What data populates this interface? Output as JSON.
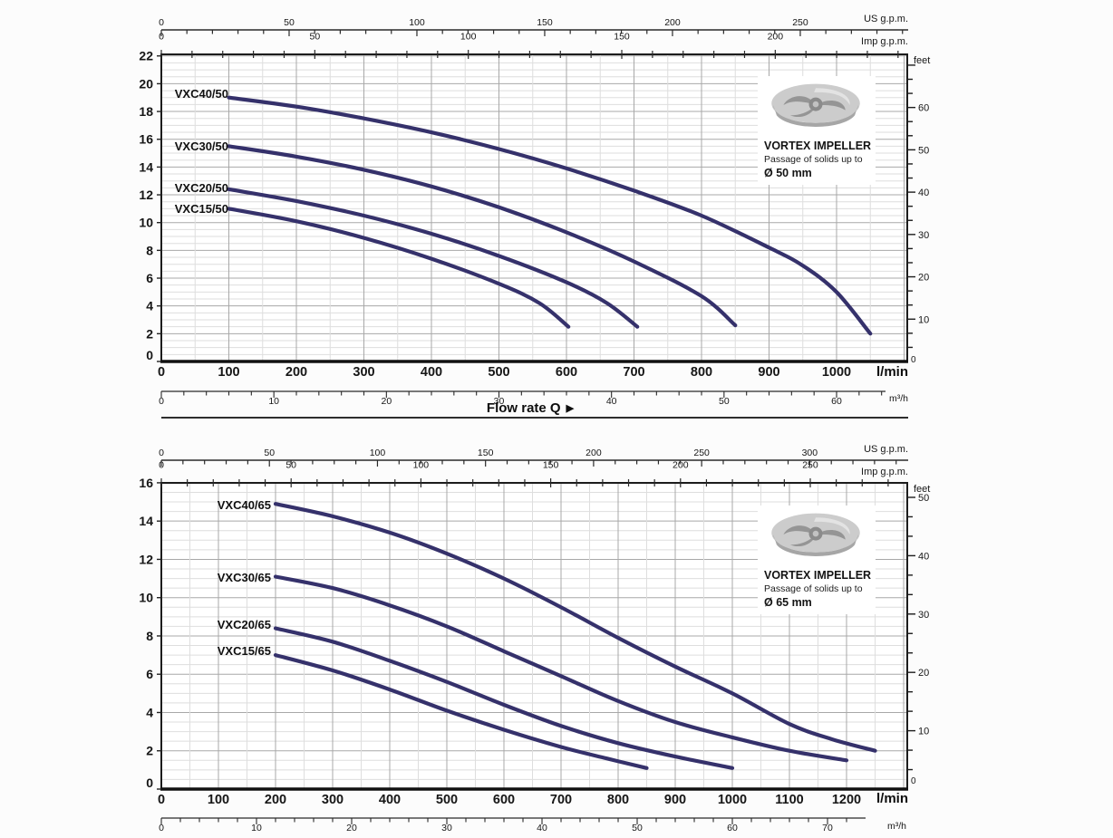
{
  "flow_rate": {
    "label": "Flow rate  Q",
    "arrow": "▶"
  },
  "colors": {
    "curve": "#35316b",
    "grid_minor": "#dedede",
    "grid_major": "#a8a8a8",
    "frame": "#1c1c1c",
    "background": "#ffffff"
  },
  "chart_data": [
    {
      "id": "vxc-50-series",
      "type": "line",
      "xlabel": "l/min",
      "x2label": "m³/h",
      "x3label": "US g.p.m.",
      "x4label": "Imp g.p.m.",
      "y2label": "feet",
      "y2zero": "0",
      "xlim": [
        0,
        1105
      ],
      "ylim": [
        0,
        22.1
      ],
      "x_ticks_lmin": [
        0,
        100,
        200,
        300,
        400,
        500,
        600,
        700,
        800,
        900,
        1000
      ],
      "x_ticks_m3h": [
        0,
        10,
        20,
        30,
        40,
        50,
        60
      ],
      "x_ticks_us_gpm": [
        0,
        50,
        100,
        150,
        200,
        250
      ],
      "x_ticks_imp_gpm": [
        0,
        50,
        100,
        150,
        200
      ],
      "y_ticks_m": [
        0,
        2,
        4,
        6,
        8,
        10,
        12,
        14,
        16,
        18,
        20,
        22
      ],
      "y_ticks_feet": [
        0,
        10,
        20,
        30,
        40,
        50,
        60
      ],
      "series": [
        {
          "name": "VXC40/50",
          "points": [
            [
              100,
              19.0
            ],
            [
              200,
              18.35
            ],
            [
              300,
              17.5
            ],
            [
              400,
              16.5
            ],
            [
              500,
              15.3
            ],
            [
              600,
              13.9
            ],
            [
              700,
              12.3
            ],
            [
              800,
              10.5
            ],
            [
              900,
              8.2
            ],
            [
              950,
              6.9
            ],
            [
              1000,
              5.0
            ],
            [
              1050,
              2.0
            ]
          ]
        },
        {
          "name": "VXC30/50",
          "points": [
            [
              100,
              15.5
            ],
            [
              200,
              14.75
            ],
            [
              300,
              13.8
            ],
            [
              400,
              12.6
            ],
            [
              500,
              11.1
            ],
            [
              600,
              9.3
            ],
            [
              700,
              7.2
            ],
            [
              800,
              4.7
            ],
            [
              850,
              2.6
            ]
          ]
        },
        {
          "name": "VXC20/50",
          "points": [
            [
              100,
              12.4
            ],
            [
              200,
              11.55
            ],
            [
              300,
              10.5
            ],
            [
              400,
              9.2
            ],
            [
              500,
              7.6
            ],
            [
              600,
              5.7
            ],
            [
              660,
              4.2
            ],
            [
              705,
              2.5
            ]
          ]
        },
        {
          "name": "VXC15/50",
          "points": [
            [
              100,
              11.0
            ],
            [
              200,
              10.1
            ],
            [
              300,
              8.9
            ],
            [
              400,
              7.4
            ],
            [
              500,
              5.6
            ],
            [
              560,
              4.2
            ],
            [
              603,
              2.5
            ]
          ]
        }
      ],
      "impeller": {
        "title": "VORTEX IMPELLER",
        "subtitle": "Passage of solids up to",
        "size": "Ø 50 mm"
      }
    },
    {
      "id": "vxc-65-series",
      "type": "line",
      "xlabel": "l/min",
      "x2label": "m³/h",
      "x3label": "US g.p.m.",
      "x4label": "Imp g.p.m.",
      "y2label": "feet",
      "y2zero": "0",
      "xlim": [
        0,
        1305
      ],
      "ylim": [
        0,
        16.0
      ],
      "x_ticks_lmin": [
        0,
        100,
        200,
        300,
        400,
        500,
        600,
        700,
        800,
        900,
        1000,
        1100,
        1200
      ],
      "x_ticks_m3h": [
        0,
        10,
        20,
        30,
        40,
        50,
        60,
        70
      ],
      "x_ticks_us_gpm": [
        0,
        50,
        100,
        150,
        200,
        250,
        300
      ],
      "x_ticks_imp_gpm": [
        0,
        50,
        100,
        150,
        200,
        250
      ],
      "y_ticks_m": [
        0,
        2,
        4,
        6,
        8,
        10,
        12,
        14,
        16
      ],
      "y_ticks_feet": [
        0,
        10,
        20,
        30,
        40,
        50
      ],
      "series": [
        {
          "name": "VXC40/65",
          "points": [
            [
              200,
              14.9
            ],
            [
              300,
              14.25
            ],
            [
              400,
              13.4
            ],
            [
              500,
              12.3
            ],
            [
              600,
              11.0
            ],
            [
              700,
              9.5
            ],
            [
              800,
              7.9
            ],
            [
              900,
              6.4
            ],
            [
              1000,
              5.0
            ],
            [
              1100,
              3.4
            ],
            [
              1175,
              2.6
            ],
            [
              1250,
              2.0
            ]
          ]
        },
        {
          "name": "VXC30/65",
          "points": [
            [
              200,
              11.1
            ],
            [
              300,
              10.5
            ],
            [
              400,
              9.6
            ],
            [
              500,
              8.5
            ],
            [
              600,
              7.2
            ],
            [
              700,
              5.9
            ],
            [
              800,
              4.6
            ],
            [
              900,
              3.5
            ],
            [
              1000,
              2.7
            ],
            [
              1100,
              2.0
            ],
            [
              1200,
              1.5
            ]
          ]
        },
        {
          "name": "VXC20/65",
          "points": [
            [
              200,
              8.4
            ],
            [
              300,
              7.7
            ],
            [
              400,
              6.7
            ],
            [
              500,
              5.6
            ],
            [
              600,
              4.4
            ],
            [
              700,
              3.3
            ],
            [
              800,
              2.4
            ],
            [
              900,
              1.7
            ],
            [
              1000,
              1.1
            ]
          ]
        },
        {
          "name": "VXC15/65",
          "points": [
            [
              200,
              7.0
            ],
            [
              300,
              6.2
            ],
            [
              400,
              5.2
            ],
            [
              500,
              4.1
            ],
            [
              600,
              3.1
            ],
            [
              700,
              2.2
            ],
            [
              780,
              1.6
            ],
            [
              850,
              1.1
            ]
          ]
        }
      ],
      "impeller": {
        "title": "VORTEX IMPELLER",
        "subtitle": "Passage of solids up to",
        "size": "Ø 65 mm"
      }
    }
  ]
}
